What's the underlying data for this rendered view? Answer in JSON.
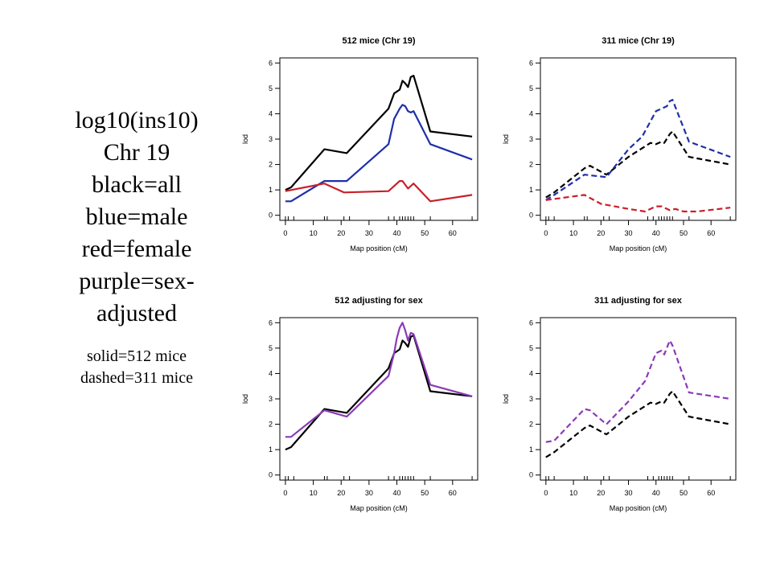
{
  "caption": {
    "lines": [
      "log10(ins10)",
      "Chr 19",
      "black=all",
      "blue=male",
      "red=female",
      "purple=sex-",
      "adjusted"
    ],
    "note_lines": [
      "solid=512 mice",
      "dashed=311 mice"
    ]
  },
  "colors": {
    "all": "#000000",
    "male": "#1f2fa8",
    "female": "#c8202a",
    "sex_adjusted": "#8a3ab9"
  },
  "chart_data": [
    {
      "type": "line",
      "title": "512 mice (Chr 19)",
      "xlabel": "Map position (cM)",
      "ylabel": "lod",
      "xlim": [
        -2,
        69
      ],
      "ylim": [
        -0.2,
        6.2
      ],
      "xticks": [
        0,
        10,
        20,
        30,
        40,
        50,
        60
      ],
      "yticks": [
        0,
        1,
        2,
        3,
        4,
        5,
        6
      ],
      "markers": [
        0,
        1,
        3,
        14,
        15,
        21,
        23,
        37,
        39,
        41,
        42,
        43,
        44,
        45,
        46,
        52,
        67
      ],
      "series": [
        {
          "name": "all",
          "color": "#000000",
          "dash": false,
          "x": [
            0,
            2,
            14,
            22,
            37,
            39,
            41,
            42,
            43,
            44,
            45,
            46,
            52,
            67
          ],
          "y": [
            1.0,
            1.1,
            2.6,
            2.45,
            4.2,
            4.8,
            4.95,
            5.3,
            5.2,
            5.05,
            5.45,
            5.5,
            3.3,
            3.1
          ]
        },
        {
          "name": "male",
          "color": "#1f2fa8",
          "dash": false,
          "x": [
            0,
            2,
            14,
            22,
            37,
            39,
            41,
            42,
            43,
            44,
            45,
            46,
            52,
            67
          ],
          "y": [
            0.55,
            0.55,
            1.35,
            1.35,
            2.8,
            3.8,
            4.2,
            4.35,
            4.3,
            4.1,
            4.05,
            4.1,
            2.8,
            2.2
          ]
        },
        {
          "name": "female",
          "color": "#c8202a",
          "dash": false,
          "x": [
            0,
            14,
            21,
            37,
            41,
            42,
            44,
            46,
            52,
            67
          ],
          "y": [
            0.95,
            1.25,
            0.9,
            0.95,
            1.35,
            1.35,
            1.05,
            1.25,
            0.55,
            0.8
          ]
        }
      ]
    },
    {
      "type": "line",
      "title": "311 mice (Chr 19)",
      "xlabel": "Map position (cM)",
      "ylabel": "lod",
      "xlim": [
        -2,
        69
      ],
      "ylim": [
        -0.2,
        6.2
      ],
      "xticks": [
        0,
        10,
        20,
        30,
        40,
        50,
        60
      ],
      "yticks": [
        0,
        1,
        2,
        3,
        4,
        5,
        6
      ],
      "markers": [
        0,
        1,
        3,
        14,
        15,
        21,
        23,
        37,
        39,
        41,
        42,
        43,
        44,
        45,
        46,
        52,
        67
      ],
      "series": [
        {
          "name": "all",
          "color": "#000000",
          "dash": true,
          "x": [
            0,
            3,
            14,
            16,
            22,
            30,
            38,
            40,
            42,
            43,
            45,
            46,
            52,
            67
          ],
          "y": [
            0.7,
            0.9,
            1.85,
            1.95,
            1.6,
            2.3,
            2.85,
            2.8,
            2.9,
            2.85,
            3.2,
            3.3,
            2.3,
            2.0
          ]
        },
        {
          "name": "male",
          "color": "#1f2fa8",
          "dash": true,
          "x": [
            0,
            3,
            14,
            22,
            30,
            35,
            40,
            42,
            44,
            45,
            46,
            52,
            67
          ],
          "y": [
            0.6,
            0.8,
            1.6,
            1.5,
            2.6,
            3.1,
            4.1,
            4.2,
            4.3,
            4.5,
            4.55,
            2.9,
            2.3
          ]
        },
        {
          "name": "female",
          "color": "#c8202a",
          "dash": true,
          "x": [
            0,
            14,
            20,
            30,
            36,
            40,
            42,
            45,
            47,
            50,
            55,
            67
          ],
          "y": [
            0.6,
            0.8,
            0.45,
            0.25,
            0.15,
            0.35,
            0.35,
            0.2,
            0.25,
            0.15,
            0.15,
            0.3
          ]
        }
      ]
    },
    {
      "type": "line",
      "title": "512 adjusting for sex",
      "xlabel": "Map position (cM)",
      "ylabel": "lod",
      "xlim": [
        -2,
        69
      ],
      "ylim": [
        -0.2,
        6.2
      ],
      "xticks": [
        0,
        10,
        20,
        30,
        40,
        50,
        60
      ],
      "yticks": [
        0,
        1,
        2,
        3,
        4,
        5,
        6
      ],
      "markers": [
        0,
        1,
        3,
        14,
        15,
        21,
        23,
        37,
        39,
        41,
        42,
        43,
        44,
        45,
        46,
        52,
        67
      ],
      "series": [
        {
          "name": "all",
          "color": "#000000",
          "dash": false,
          "x": [
            0,
            2,
            14,
            22,
            37,
            39,
            41,
            42,
            43,
            44,
            45,
            46,
            52,
            67
          ],
          "y": [
            1.0,
            1.1,
            2.6,
            2.45,
            4.2,
            4.8,
            4.95,
            5.3,
            5.2,
            5.05,
            5.45,
            5.5,
            3.3,
            3.1
          ]
        },
        {
          "name": "sex-adjusted",
          "color": "#8a3ab9",
          "dash": false,
          "x": [
            0,
            2,
            14,
            22,
            37,
            39,
            40,
            41,
            42,
            43,
            44,
            45,
            46,
            52,
            67
          ],
          "y": [
            1.5,
            1.5,
            2.55,
            2.3,
            3.9,
            4.8,
            5.4,
            5.8,
            6.0,
            5.7,
            5.3,
            5.6,
            5.55,
            3.55,
            3.1
          ]
        }
      ]
    },
    {
      "type": "line",
      "title": "311 adjusting for sex",
      "xlabel": "Map position (cM)",
      "ylabel": "lod",
      "xlim": [
        -2,
        69
      ],
      "ylim": [
        -0.2,
        6.2
      ],
      "xticks": [
        0,
        10,
        20,
        30,
        40,
        50,
        60
      ],
      "yticks": [
        0,
        1,
        2,
        3,
        4,
        5,
        6
      ],
      "markers": [
        0,
        1,
        3,
        14,
        15,
        21,
        23,
        37,
        39,
        41,
        42,
        43,
        44,
        45,
        46,
        52,
        67
      ],
      "series": [
        {
          "name": "all",
          "color": "#000000",
          "dash": true,
          "x": [
            0,
            3,
            14,
            16,
            22,
            30,
            38,
            40,
            42,
            43,
            45,
            46,
            52,
            67
          ],
          "y": [
            0.7,
            0.9,
            1.85,
            1.95,
            1.6,
            2.3,
            2.85,
            2.8,
            2.9,
            2.85,
            3.2,
            3.3,
            2.3,
            2.0
          ]
        },
        {
          "name": "sex-adjusted",
          "color": "#8a3ab9",
          "dash": true,
          "x": [
            0,
            3,
            14,
            16,
            22,
            30,
            36,
            40,
            42,
            43,
            45,
            46,
            52,
            67
          ],
          "y": [
            1.3,
            1.35,
            2.6,
            2.55,
            2.0,
            2.9,
            3.7,
            4.8,
            4.9,
            4.75,
            5.3,
            5.1,
            3.25,
            3.0
          ]
        }
      ]
    }
  ]
}
